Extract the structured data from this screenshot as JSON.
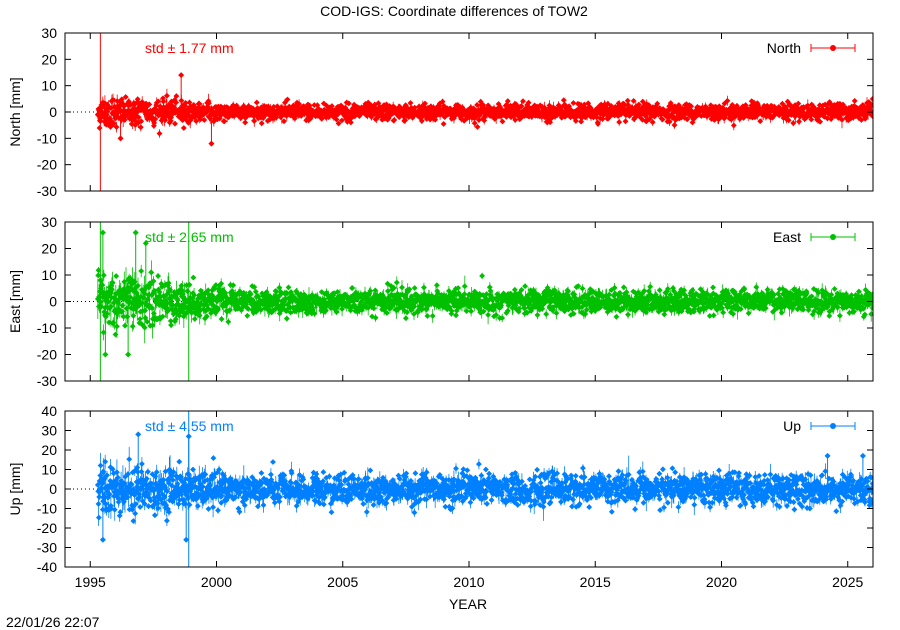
{
  "title": "COD-IGS: Coordinate differences of TOW2",
  "timestamp": "22/01/26 22:07",
  "xlabel": "YEAR",
  "chart_data": [
    {
      "type": "scatter",
      "series_name": "North",
      "ylabel": "North [mm]",
      "std_label": "std ± 1.77 mm",
      "color": "#ff0000",
      "xlim": [
        1994,
        2026
      ],
      "ylim": [
        -30,
        30
      ],
      "xticks": [
        1995,
        2000,
        2005,
        2010,
        2015,
        2020,
        2025
      ],
      "yticks": [
        -30,
        -20,
        -10,
        0,
        10,
        20,
        30
      ],
      "start_year": 1995.3,
      "end_year": 2026,
      "std": 1.77,
      "early_std": 3.5,
      "spike_years": [
        1995.4
      ],
      "outliers": [
        [
          1998.6,
          14
        ],
        [
          1999.8,
          -12
        ],
        [
          1996.2,
          -10
        ]
      ]
    },
    {
      "type": "scatter",
      "series_name": "East",
      "ylabel": "East [mm]",
      "std_label": "std ± 2.65 mm",
      "color": "#00c000",
      "xlim": [
        1994,
        2026
      ],
      "ylim": [
        -30,
        30
      ],
      "xticks": [
        1995,
        2000,
        2005,
        2010,
        2015,
        2020,
        2025
      ],
      "yticks": [
        -30,
        -20,
        -10,
        0,
        10,
        20,
        30
      ],
      "start_year": 1995.3,
      "end_year": 2026,
      "std": 2.65,
      "early_std": 7,
      "spike_years": [
        1995.4,
        1998.9
      ],
      "outliers": [
        [
          1995.5,
          26
        ],
        [
          1996.8,
          26
        ],
        [
          1995.6,
          -20
        ],
        [
          1996.5,
          -20
        ],
        [
          1997.2,
          22
        ]
      ]
    },
    {
      "type": "scatter",
      "series_name": "Up",
      "ylabel": "Up [mm]",
      "std_label": "std ± 4.55 mm",
      "color": "#0080ff",
      "xlim": [
        1994,
        2026
      ],
      "ylim": [
        -40,
        40
      ],
      "xticks": [
        1995,
        2000,
        2005,
        2010,
        2015,
        2020,
        2025
      ],
      "yticks": [
        -40,
        -30,
        -20,
        -10,
        0,
        10,
        20,
        30,
        40
      ],
      "start_year": 1995.3,
      "end_year": 2026,
      "std": 4.55,
      "early_std": 8,
      "spike_years": [
        1998.9
      ],
      "outliers": [
        [
          1995.5,
          -26
        ],
        [
          1996.9,
          28
        ],
        [
          1998.9,
          27
        ],
        [
          1998.8,
          -26
        ],
        [
          2024.2,
          17
        ],
        [
          2025.6,
          17
        ],
        [
          2023.5,
          -10
        ]
      ]
    }
  ]
}
